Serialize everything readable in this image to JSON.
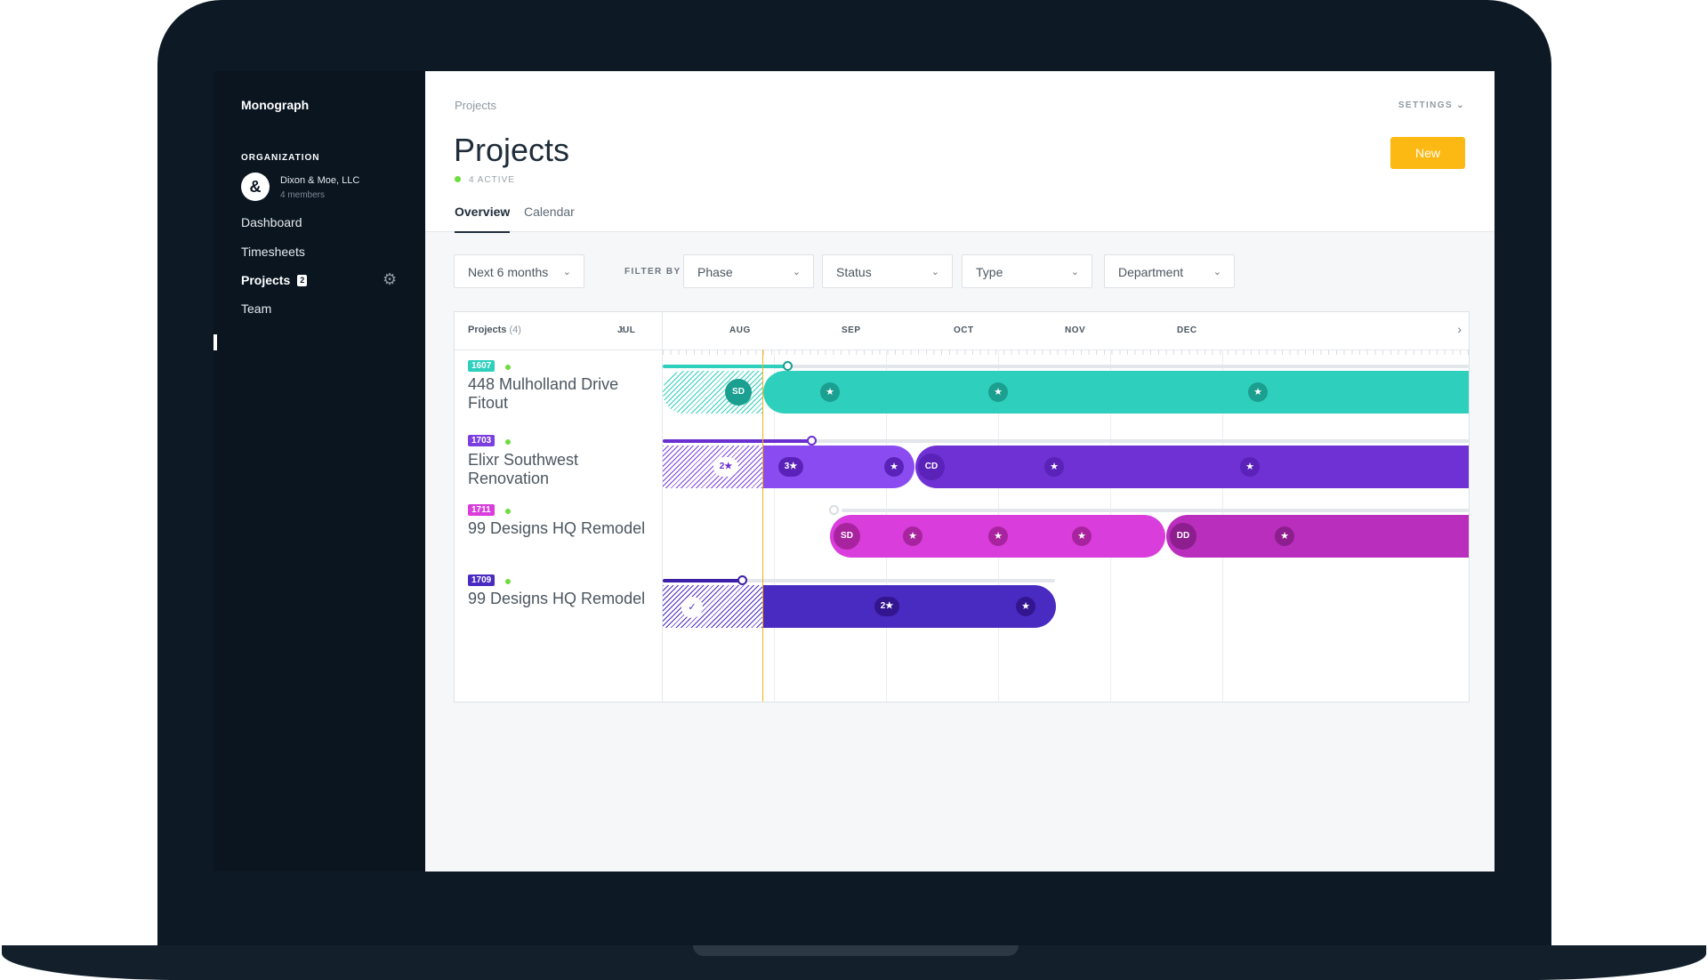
{
  "sidebar": {
    "brand": "Monograph",
    "org_heading": "ORGANIZATION",
    "org_avatar": "&",
    "org_name": "Dixon & Moe, LLC",
    "org_members": "4 members",
    "nav": [
      "Dashboard",
      "Timesheets",
      "Projects",
      "Team"
    ],
    "projects_badge": "2",
    "gear_icon": "⚙"
  },
  "header": {
    "breadcrumb": "Projects",
    "settings": "SETTINGS",
    "settings_chevron": "⌄",
    "title": "Projects",
    "active_text": "4 ACTIVE",
    "new_label": "New",
    "tabs": [
      "Overview",
      "Calendar"
    ]
  },
  "filters": {
    "range": "Next 6 months",
    "filter_by": "FILTER BY",
    "phase": "Phase",
    "status": "Status",
    "type": "Type",
    "department": "Department",
    "chevron": "⌄"
  },
  "gantt": {
    "projects_label": "Projects",
    "projects_count": "(4)",
    "prev": "‹",
    "next": "›",
    "months": [
      "JUL",
      "AUG",
      "SEP",
      "OCT",
      "NOV",
      "DEC"
    ],
    "rows": [
      {
        "code": "1607",
        "name": "448 Mulholland Drive Fitout",
        "color": "#2fcfbd",
        "phase": "SD",
        "star": "★"
      },
      {
        "code": "1703",
        "name": "Elixr Southwest Renovation",
        "color": "#7b3fe0",
        "star2": "2★",
        "star3": "3★",
        "phase": "CD",
        "star": "★"
      },
      {
        "code": "1711",
        "name": "99 Designs HQ Remodel",
        "color": "#d93ddc",
        "phase": "SD",
        "phase2": "DD",
        "star": "★"
      },
      {
        "code": "1709",
        "name": "99 Designs HQ Remodel",
        "color": "#4a2bc2",
        "check": "✓",
        "star2": "2★",
        "star": "★"
      }
    ]
  }
}
